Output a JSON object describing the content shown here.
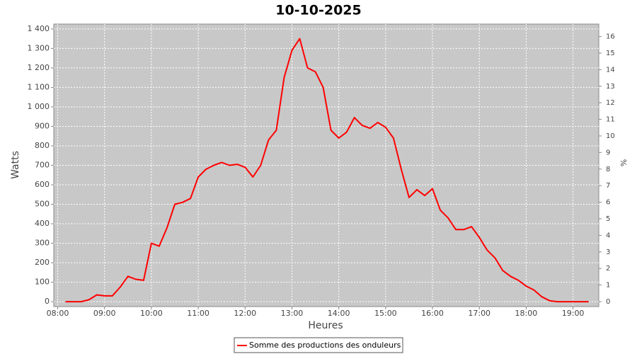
{
  "chart_data": {
    "type": "line",
    "title": "10-10-2025",
    "x_label": "Heures",
    "y_label": "Watts",
    "y2_label": "%",
    "x": [
      "08:10",
      "08:20",
      "08:30",
      "08:40",
      "08:50",
      "09:00",
      "09:10",
      "09:20",
      "09:30",
      "09:40",
      "09:50",
      "10:00",
      "10:10",
      "10:20",
      "10:30",
      "10:40",
      "10:50",
      "11:00",
      "11:10",
      "11:20",
      "11:30",
      "11:40",
      "11:50",
      "12:00",
      "12:10",
      "12:20",
      "12:30",
      "12:40",
      "12:50",
      "13:00",
      "13:10",
      "13:20",
      "13:30",
      "13:40",
      "13:50",
      "14:00",
      "14:10",
      "14:20",
      "14:30",
      "14:40",
      "14:50",
      "15:00",
      "15:10",
      "15:20",
      "15:30",
      "15:40",
      "15:50",
      "16:00",
      "16:10",
      "16:20",
      "16:30",
      "16:40",
      "16:50",
      "17:00",
      "17:10",
      "17:20",
      "17:30",
      "17:40",
      "17:50",
      "18:00",
      "18:10",
      "18:20",
      "18:30",
      "18:40",
      "18:50",
      "19:00",
      "19:10",
      "19:20"
    ],
    "series": [
      {
        "name": "Somme des productions des onduleurs",
        "color": "#ff0000",
        "values": [
          0,
          0,
          0,
          10,
          35,
          30,
          30,
          75,
          130,
          115,
          110,
          300,
          285,
          380,
          500,
          510,
          530,
          640,
          680,
          700,
          715,
          700,
          705,
          690,
          640,
          700,
          830,
          880,
          1150,
          1290,
          1350,
          1200,
          1180,
          1100,
          880,
          840,
          870,
          945,
          905,
          890,
          920,
          895,
          840,
          680,
          535,
          575,
          545,
          580,
          470,
          430,
          370,
          370,
          385,
          330,
          265,
          225,
          160,
          130,
          110,
          80,
          60,
          25,
          5,
          0,
          0,
          0,
          0,
          0
        ]
      }
    ],
    "xlim": [
      "07:55",
      "19:33"
    ],
    "xticks": [
      "08:00",
      "09:00",
      "10:00",
      "11:00",
      "12:00",
      "13:00",
      "14:00",
      "15:00",
      "16:00",
      "17:00",
      "18:00",
      "19:00"
    ],
    "ylim": [
      -25,
      1425
    ],
    "yticks": [
      0,
      100,
      200,
      300,
      400,
      500,
      600,
      700,
      800,
      900,
      {
        "value": 1000,
        "label": "1 000"
      },
      {
        "value": 1100,
        "label": "1 100"
      },
      {
        "value": 1200,
        "label": "1 200"
      },
      {
        "value": 1300,
        "label": "1 300"
      },
      {
        "value": 1400,
        "label": "1 400"
      }
    ],
    "y2lim": [
      -0.3,
      16.75
    ],
    "y2ticks": [
      0,
      1,
      2,
      3,
      4,
      5,
      6,
      7,
      8,
      9,
      10,
      11,
      12,
      13,
      14,
      15,
      16
    ],
    "grid": true,
    "legend": "bottom"
  }
}
